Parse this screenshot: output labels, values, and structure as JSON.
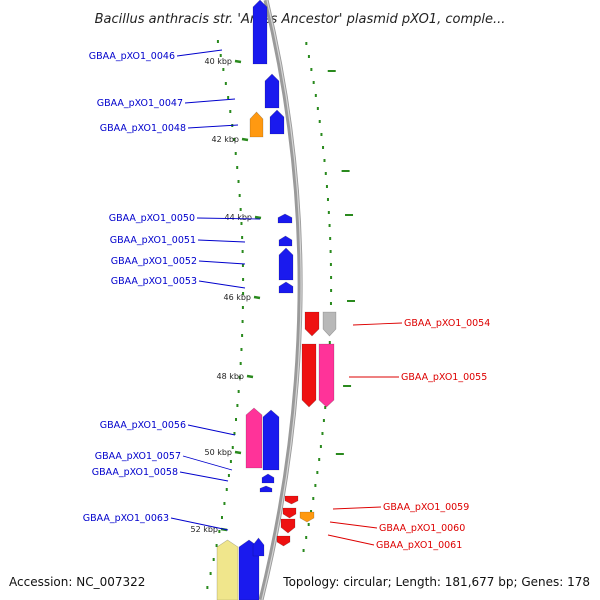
{
  "title": "Bacillus anthracis str. 'Ames Ancestor' plasmid pXO1, comple...",
  "footer": {
    "accession": "Accession: NC_007322",
    "summary": "Topology: circular; Length: 181,677 bp; Genes: 178"
  },
  "colors": {
    "backbone": "#9a9a9a",
    "tick": "#2a8a1e",
    "forward_label": "#0000cc",
    "reverse_label": "#dd0000",
    "blue": "#1a1aee",
    "red": "#ee1111",
    "pink": "#ff3399",
    "orange": "#ff9911",
    "gray": "#b8b8b8",
    "khaki": "#f0e68c"
  },
  "ticks": [
    "40 kbp",
    "42 kbp",
    "44 kbp",
    "46 kbp",
    "48 kbp",
    "50 kbp",
    "52 kbp"
  ],
  "genes": [
    {
      "label": "GBAA_pXO1_0046",
      "strand": "forward"
    },
    {
      "label": "GBAA_pXO1_0047",
      "strand": "forward"
    },
    {
      "label": "GBAA_pXO1_0048",
      "strand": "forward"
    },
    {
      "label": "GBAA_pXO1_0050",
      "strand": "forward"
    },
    {
      "label": "GBAA_pXO1_0051",
      "strand": "forward"
    },
    {
      "label": "GBAA_pXO1_0052",
      "strand": "forward"
    },
    {
      "label": "GBAA_pXO1_0053",
      "strand": "forward"
    },
    {
      "label": "GBAA_pXO1_0054",
      "strand": "reverse"
    },
    {
      "label": "GBAA_pXO1_0055",
      "strand": "reverse"
    },
    {
      "label": "GBAA_pXO1_0056",
      "strand": "forward"
    },
    {
      "label": "GBAA_pXO1_0057",
      "strand": "forward"
    },
    {
      "label": "GBAA_pXO1_0058",
      "strand": "forward"
    },
    {
      "label": "GBAA_pXO1_0059",
      "strand": "reverse"
    },
    {
      "label": "GBAA_pXO1_0060",
      "strand": "reverse"
    },
    {
      "label": "GBAA_pXO1_0061",
      "strand": "reverse"
    },
    {
      "label": "GBAA_pXO1_0063",
      "strand": "forward"
    }
  ]
}
